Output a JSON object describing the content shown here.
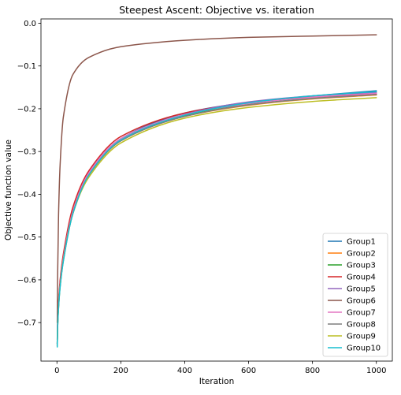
{
  "chart_data": {
    "type": "line",
    "title": "Steepest Ascent: Objective vs. iteration",
    "xlabel": "Iteration",
    "ylabel": "Objective function value",
    "xlim": [
      -50,
      1050
    ],
    "ylim": [
      -0.79,
      0.01
    ],
    "x_ticks": [
      0,
      200,
      400,
      600,
      800,
      1000
    ],
    "x_tick_labels": [
      "0",
      "200",
      "400",
      "600",
      "800",
      "1000"
    ],
    "y_ticks": [
      0.0,
      -0.1,
      -0.2,
      -0.3,
      -0.4,
      -0.5,
      -0.6,
      -0.7
    ],
    "y_tick_labels": [
      "0.0",
      "−0.1",
      "−0.2",
      "−0.3",
      "−0.4",
      "−0.5",
      "−0.6",
      "−0.7"
    ],
    "grid": false,
    "legend_position": "lower-right",
    "x": [
      1,
      2,
      5,
      10,
      20,
      50,
      100,
      200,
      400,
      600,
      800,
      1000
    ],
    "series": [
      {
        "name": "Group1",
        "color": "#1f77b4",
        "values": [
          -0.75,
          -0.71,
          -0.66,
          -0.61,
          -0.55,
          -0.44,
          -0.35,
          -0.27,
          -0.21,
          -0.185,
          -0.17,
          -0.158
        ]
      },
      {
        "name": "Group2",
        "color": "#ff7f0e",
        "values": [
          -0.75,
          -0.71,
          -0.66,
          -0.61,
          -0.55,
          -0.44,
          -0.355,
          -0.275,
          -0.218,
          -0.192,
          -0.177,
          -0.168
        ]
      },
      {
        "name": "Group3",
        "color": "#2ca02c",
        "values": [
          -0.75,
          -0.71,
          -0.66,
          -0.61,
          -0.55,
          -0.44,
          -0.355,
          -0.275,
          -0.217,
          -0.19,
          -0.176,
          -0.166
        ]
      },
      {
        "name": "Group4",
        "color": "#d62728",
        "values": [
          -0.74,
          -0.7,
          -0.65,
          -0.6,
          -0.54,
          -0.43,
          -0.345,
          -0.265,
          -0.21,
          -0.186,
          -0.173,
          -0.165
        ]
      },
      {
        "name": "Group5",
        "color": "#9467bd",
        "values": [
          -0.75,
          -0.71,
          -0.66,
          -0.61,
          -0.55,
          -0.44,
          -0.35,
          -0.27,
          -0.213,
          -0.184,
          -0.17,
          -0.162
        ]
      },
      {
        "name": "Group6",
        "color": "#8c564b",
        "values": [
          -0.7,
          -0.6,
          -0.45,
          -0.33,
          -0.22,
          -0.12,
          -0.08,
          -0.055,
          -0.04,
          -0.033,
          -0.03,
          -0.027
        ]
      },
      {
        "name": "Group7",
        "color": "#e377c2",
        "values": [
          -0.75,
          -0.71,
          -0.66,
          -0.61,
          -0.55,
          -0.44,
          -0.35,
          -0.27,
          -0.214,
          -0.188,
          -0.173,
          -0.164
        ]
      },
      {
        "name": "Group8",
        "color": "#7f7f7f",
        "values": [
          -0.755,
          -0.715,
          -0.665,
          -0.615,
          -0.555,
          -0.445,
          -0.355,
          -0.275,
          -0.218,
          -0.191,
          -0.176,
          -0.167
        ]
      },
      {
        "name": "Group9",
        "color": "#bcbd22",
        "values": [
          -0.755,
          -0.715,
          -0.665,
          -0.615,
          -0.555,
          -0.445,
          -0.36,
          -0.28,
          -0.222,
          -0.197,
          -0.183,
          -0.174
        ]
      },
      {
        "name": "Group10",
        "color": "#17becf",
        "values": [
          -0.757,
          -0.717,
          -0.667,
          -0.617,
          -0.557,
          -0.445,
          -0.355,
          -0.273,
          -0.215,
          -0.186,
          -0.17,
          -0.16
        ]
      }
    ]
  }
}
